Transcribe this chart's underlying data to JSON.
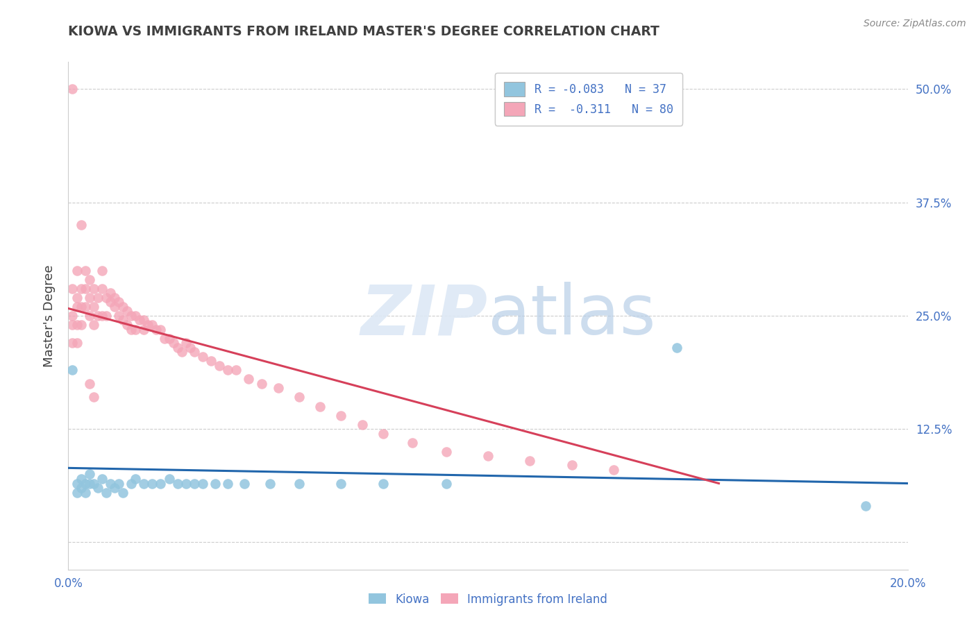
{
  "title": "KIOWA VS IMMIGRANTS FROM IRELAND MASTER'S DEGREE CORRELATION CHART",
  "source": "Source: ZipAtlas.com",
  "ylabel": "Master's Degree",
  "xlim": [
    0.0,
    0.2
  ],
  "ylim": [
    -0.03,
    0.53
  ],
  "color_kiowa": "#92c5de",
  "color_ireland": "#f4a6b8",
  "color_line_kiowa": "#2166ac",
  "color_line_ireland": "#d6405a",
  "background_color": "#ffffff",
  "kiowa_scatter_x": [
    0.001,
    0.002,
    0.002,
    0.003,
    0.003,
    0.004,
    0.004,
    0.005,
    0.005,
    0.006,
    0.007,
    0.008,
    0.009,
    0.01,
    0.011,
    0.012,
    0.013,
    0.015,
    0.016,
    0.018,
    0.02,
    0.022,
    0.024,
    0.026,
    0.028,
    0.03,
    0.032,
    0.035,
    0.038,
    0.042,
    0.048,
    0.055,
    0.065,
    0.075,
    0.09,
    0.145,
    0.19
  ],
  "kiowa_scatter_y": [
    0.19,
    0.065,
    0.055,
    0.07,
    0.06,
    0.065,
    0.055,
    0.075,
    0.065,
    0.065,
    0.06,
    0.07,
    0.055,
    0.065,
    0.06,
    0.065,
    0.055,
    0.065,
    0.07,
    0.065,
    0.065,
    0.065,
    0.07,
    0.065,
    0.065,
    0.065,
    0.065,
    0.065,
    0.065,
    0.065,
    0.065,
    0.065,
    0.065,
    0.065,
    0.065,
    0.215,
    0.04
  ],
  "ireland_scatter_x": [
    0.001,
    0.001,
    0.001,
    0.001,
    0.001,
    0.002,
    0.002,
    0.002,
    0.002,
    0.002,
    0.003,
    0.003,
    0.003,
    0.003,
    0.004,
    0.004,
    0.004,
    0.005,
    0.005,
    0.005,
    0.006,
    0.006,
    0.006,
    0.007,
    0.007,
    0.008,
    0.008,
    0.008,
    0.009,
    0.009,
    0.01,
    0.01,
    0.011,
    0.011,
    0.012,
    0.012,
    0.013,
    0.013,
    0.014,
    0.014,
    0.015,
    0.015,
    0.016,
    0.016,
    0.017,
    0.018,
    0.018,
    0.019,
    0.02,
    0.021,
    0.022,
    0.023,
    0.024,
    0.025,
    0.026,
    0.027,
    0.028,
    0.029,
    0.03,
    0.032,
    0.034,
    0.036,
    0.038,
    0.04,
    0.043,
    0.046,
    0.05,
    0.055,
    0.06,
    0.065,
    0.07,
    0.075,
    0.082,
    0.09,
    0.1,
    0.11,
    0.12,
    0.13,
    0.005,
    0.006
  ],
  "ireland_scatter_y": [
    0.5,
    0.28,
    0.25,
    0.24,
    0.22,
    0.3,
    0.27,
    0.26,
    0.24,
    0.22,
    0.35,
    0.28,
    0.26,
    0.24,
    0.3,
    0.28,
    0.26,
    0.29,
    0.27,
    0.25,
    0.28,
    0.26,
    0.24,
    0.27,
    0.25,
    0.3,
    0.28,
    0.25,
    0.27,
    0.25,
    0.275,
    0.265,
    0.27,
    0.26,
    0.265,
    0.25,
    0.26,
    0.245,
    0.255,
    0.24,
    0.25,
    0.235,
    0.25,
    0.235,
    0.245,
    0.245,
    0.235,
    0.24,
    0.24,
    0.235,
    0.235,
    0.225,
    0.225,
    0.22,
    0.215,
    0.21,
    0.22,
    0.215,
    0.21,
    0.205,
    0.2,
    0.195,
    0.19,
    0.19,
    0.18,
    0.175,
    0.17,
    0.16,
    0.15,
    0.14,
    0.13,
    0.12,
    0.11,
    0.1,
    0.095,
    0.09,
    0.085,
    0.08,
    0.175,
    0.16
  ],
  "kiowa_line_x": [
    0.0,
    0.2
  ],
  "kiowa_line_y": [
    0.082,
    0.065
  ],
  "ireland_line_x": [
    0.0,
    0.155
  ],
  "ireland_line_y": [
    0.258,
    0.065
  ],
  "grid_color": "#cccccc",
  "tick_color": "#4472c4",
  "title_color": "#404040"
}
